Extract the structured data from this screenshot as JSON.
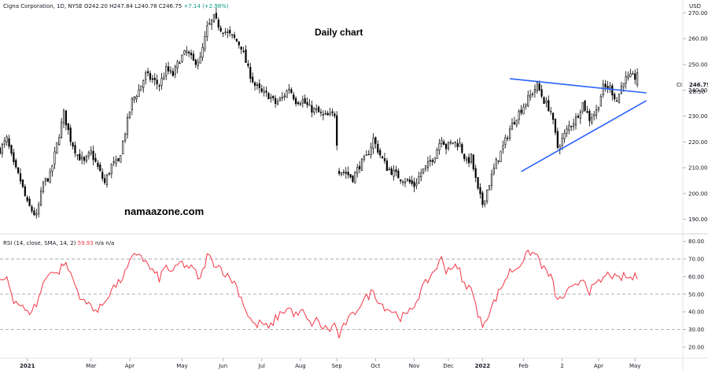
{
  "header": {
    "symbol_info": "Cigna Corporation, 1D, NYSE",
    "ohlc": "O242.20  H247.84  L240.78  C246.75",
    "change": "+7.14 (+2.98%)",
    "currency": "USD"
  },
  "chart_title": "Daily chart",
  "watermark": "namaazone.com",
  "price_tag": {
    "ticker": "CI",
    "price": "246.75",
    "countdown": "28:50"
  },
  "rsi_header": {
    "label": "RSI (14, close, SMA, 14, 2)",
    "value": "59.93",
    "na": "n/a  n/a"
  },
  "chart_data": [
    {
      "type": "candlestick",
      "name": "Cigna Corporation",
      "ylim": [
        185,
        275
      ],
      "yticks": [
        190,
        200,
        210,
        220,
        230,
        240,
        250,
        260,
        270
      ],
      "ytick_labels": [
        "190.00",
        "200.00",
        "210.00",
        "220.00",
        "230.00",
        "240.00",
        "250.00",
        "260.00",
        "270.00"
      ],
      "xticks": [
        "2021",
        "Mar",
        "Apr",
        "May",
        "Jun",
        "Jul",
        "Aug",
        "Sep",
        "Oct",
        "Nov",
        "Dec",
        "2022",
        "Feb",
        "2",
        "Apr",
        "May"
      ],
      "grid": false,
      "close_path": [
        [
          0,
          217
        ],
        [
          3,
          221
        ],
        [
          6,
          211
        ],
        [
          9,
          205
        ],
        [
          12,
          196
        ],
        [
          16,
          191
        ],
        [
          19,
          204
        ],
        [
          22,
          207
        ],
        [
          25,
          219
        ],
        [
          28,
          231
        ],
        [
          31,
          221
        ],
        [
          34,
          215
        ],
        [
          37,
          212
        ],
        [
          40,
          216
        ],
        [
          43,
          210
        ],
        [
          46,
          204
        ],
        [
          49,
          211
        ],
        [
          52,
          212
        ],
        [
          55,
          224
        ],
        [
          58,
          236
        ],
        [
          61,
          240
        ],
        [
          64,
          246
        ],
        [
          67,
          244
        ],
        [
          70,
          242
        ],
        [
          73,
          248
        ],
        [
          76,
          246
        ],
        [
          79,
          252
        ],
        [
          82,
          255
        ],
        [
          85,
          251
        ],
        [
          88,
          252
        ],
        [
          91,
          264
        ],
        [
          94,
          268
        ],
        [
          97,
          264
        ],
        [
          100,
          262
        ],
        [
          103,
          260
        ],
        [
          106,
          257
        ],
        [
          109,
          248
        ],
        [
          112,
          242
        ],
        [
          115,
          239
        ],
        [
          118,
          238
        ],
        [
          121,
          235
        ],
        [
          124,
          237
        ],
        [
          127,
          241
        ],
        [
          130,
          236
        ],
        [
          133,
          236
        ],
        [
          136,
          233
        ],
        [
          139,
          232
        ],
        [
          142,
          230
        ],
        [
          145,
          230
        ],
        [
          147,
          231
        ],
        [
          149,
          209
        ],
        [
          152,
          208
        ],
        [
          155,
          206
        ],
        [
          158,
          211
        ],
        [
          161,
          214
        ],
        [
          164,
          221
        ],
        [
          167,
          215
        ],
        [
          170,
          210
        ],
        [
          173,
          208
        ],
        [
          176,
          206
        ],
        [
          179,
          205
        ],
        [
          182,
          203
        ],
        [
          185,
          208
        ],
        [
          188,
          211
        ],
        [
          191,
          215
        ],
        [
          194,
          222
        ],
        [
          196,
          218
        ],
        [
          199,
          220
        ],
        [
          202,
          219
        ],
        [
          205,
          212
        ],
        [
          207,
          214
        ],
        [
          210,
          201
        ],
        [
          212,
          196
        ],
        [
          215,
          204
        ],
        [
          218,
          212
        ],
        [
          221,
          218
        ],
        [
          224,
          225
        ],
        [
          227,
          230
        ],
        [
          230,
          234
        ],
        [
          233,
          238
        ],
        [
          236,
          242
        ],
        [
          239,
          236
        ],
        [
          242,
          232
        ],
        [
          245,
          218
        ],
        [
          247,
          221
        ],
        [
          250,
          226
        ],
        [
          253,
          229
        ],
        [
          256,
          235
        ],
        [
          259,
          229
        ],
        [
          262,
          232
        ],
        [
          265,
          241
        ],
        [
          268,
          241
        ],
        [
          271,
          236
        ],
        [
          274,
          244
        ],
        [
          277,
          245
        ],
        [
          280,
          245
        ]
      ],
      "trendlines": [
        {
          "from": [
            224,
            244.5
          ],
          "to": [
            284,
            239
          ]
        },
        {
          "from": [
            229,
            208.5
          ],
          "to": [
            284,
            236
          ]
        }
      ]
    },
    {
      "type": "line",
      "name": "RSI (14, close, SMA, 14, 2)",
      "ylim": [
        15,
        83
      ],
      "yticks": [
        20,
        30,
        40,
        50,
        60,
        70,
        80
      ],
      "ytick_labels": [
        "20.00",
        "30.00",
        "40.00",
        "50.00",
        "60.00",
        "70.00",
        "80.00"
      ],
      "bands": [
        30,
        50,
        70
      ],
      "color": "#f23645",
      "values": [
        [
          0,
          56
        ],
        [
          3,
          60
        ],
        [
          6,
          47
        ],
        [
          9,
          44
        ],
        [
          12,
          39
        ],
        [
          16,
          44
        ],
        [
          19,
          56
        ],
        [
          22,
          64
        ],
        [
          25,
          61
        ],
        [
          28,
          68
        ],
        [
          31,
          62
        ],
        [
          34,
          52
        ],
        [
          37,
          45
        ],
        [
          40,
          44
        ],
        [
          43,
          40
        ],
        [
          46,
          46
        ],
        [
          49,
          53
        ],
        [
          52,
          56
        ],
        [
          55,
          62
        ],
        [
          58,
          70
        ],
        [
          61,
          74
        ],
        [
          64,
          68
        ],
        [
          67,
          63
        ],
        [
          70,
          59
        ],
        [
          73,
          66
        ],
        [
          76,
          62
        ],
        [
          79,
          68
        ],
        [
          82,
          66
        ],
        [
          85,
          64
        ],
        [
          88,
          58
        ],
        [
          91,
          72
        ],
        [
          94,
          68
        ],
        [
          97,
          65
        ],
        [
          100,
          60
        ],
        [
          103,
          57
        ],
        [
          106,
          48
        ],
        [
          109,
          38
        ],
        [
          112,
          32
        ],
        [
          115,
          34
        ],
        [
          118,
          30
        ],
        [
          121,
          36
        ],
        [
          124,
          40
        ],
        [
          127,
          42
        ],
        [
          130,
          38
        ],
        [
          133,
          40
        ],
        [
          136,
          33
        ],
        [
          139,
          35
        ],
        [
          142,
          31
        ],
        [
          145,
          30
        ],
        [
          147,
          33
        ],
        [
          149,
          26
        ],
        [
          152,
          34
        ],
        [
          155,
          38
        ],
        [
          158,
          44
        ],
        [
          161,
          48
        ],
        [
          164,
          52
        ],
        [
          167,
          45
        ],
        [
          170,
          42
        ],
        [
          173,
          40
        ],
        [
          176,
          37
        ],
        [
          179,
          38
        ],
        [
          182,
          44
        ],
        [
          185,
          52
        ],
        [
          188,
          58
        ],
        [
          191,
          64
        ],
        [
          194,
          70
        ],
        [
          196,
          64
        ],
        [
          199,
          66
        ],
        [
          202,
          63
        ],
        [
          205,
          52
        ],
        [
          207,
          56
        ],
        [
          210,
          37
        ],
        [
          212,
          33
        ],
        [
          215,
          40
        ],
        [
          218,
          48
        ],
        [
          221,
          56
        ],
        [
          224,
          63
        ],
        [
          227,
          65
        ],
        [
          230,
          70
        ],
        [
          233,
          74
        ],
        [
          236,
          72
        ],
        [
          239,
          64
        ],
        [
          242,
          60
        ],
        [
          245,
          46
        ],
        [
          247,
          48
        ],
        [
          250,
          52
        ],
        [
          253,
          54
        ],
        [
          256,
          60
        ],
        [
          259,
          52
        ],
        [
          262,
          55
        ],
        [
          265,
          59
        ],
        [
          268,
          62
        ],
        [
          271,
          58
        ],
        [
          274,
          60
        ],
        [
          277,
          59
        ],
        [
          280,
          60
        ]
      ]
    }
  ]
}
